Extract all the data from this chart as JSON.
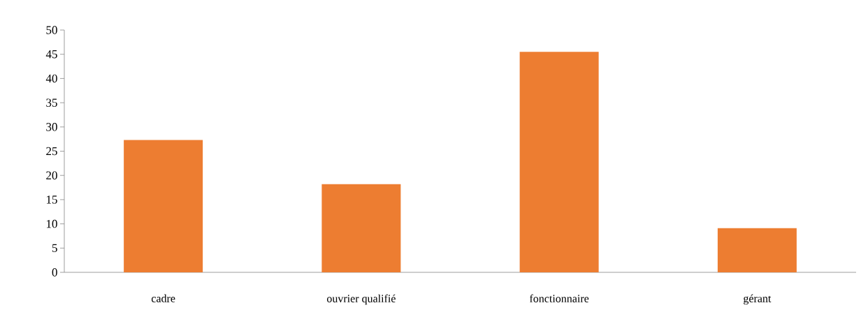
{
  "chart_data": {
    "type": "bar",
    "categories": [
      "cadre",
      "ouvrier qualifié",
      "fonctionnaire",
      "gérant"
    ],
    "values": [
      27.3,
      18.2,
      45.5,
      9.1
    ],
    "color": "#ed7d31",
    "ylim": [
      0,
      50
    ],
    "yticks": [
      0,
      5,
      10,
      15,
      20,
      25,
      30,
      35,
      40,
      45,
      50
    ],
    "grid": false
  }
}
